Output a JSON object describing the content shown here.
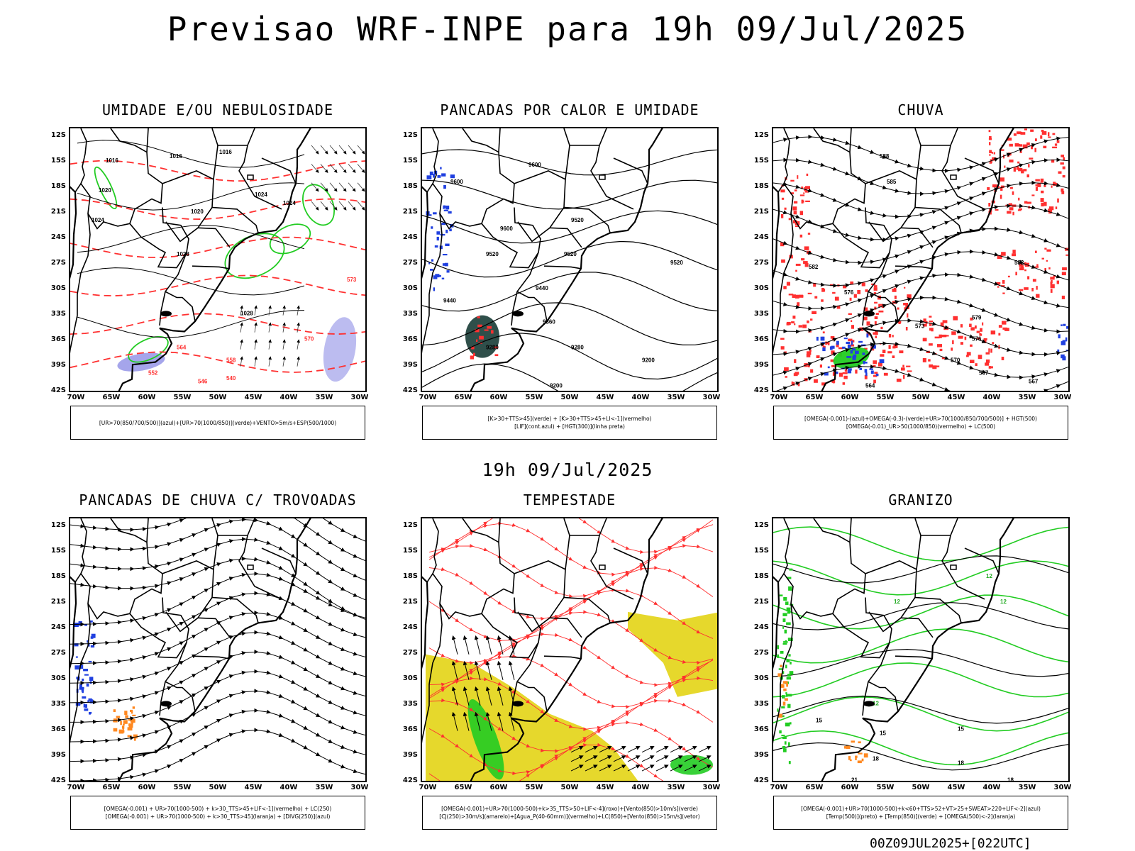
{
  "title": "Previsao WRF-INPE  para 19h 09/Jul/2025",
  "subtitle": "19h 09/Jul/2025",
  "footer": "00Z09JUL2025+[022UTC]",
  "lat_labels": [
    "12S",
    "15S",
    "18S",
    "21S",
    "24S",
    "27S",
    "30S",
    "33S",
    "36S",
    "39S",
    "42S"
  ],
  "lon_labels": [
    "70W",
    "65W",
    "60W",
    "55W",
    "50W",
    "45W",
    "40W",
    "35W",
    "30W"
  ],
  "panels": [
    {
      "title": "UMIDADE E/OU NEBULOSIDADE",
      "legend": [
        "[UR>70(850/700/500)](azul)+[UR>70(1000/850)](verde)+VENTO>5m/s+ESP(500/1000)"
      ],
      "contour_labels": [
        "1016",
        "1016",
        "1016",
        "1020",
        "1020",
        "1024",
        "1024",
        "1024",
        "1028",
        "1028",
        "570",
        "573",
        "564",
        "558",
        "552",
        "546",
        "540"
      ]
    },
    {
      "title": "PANCADAS POR CALOR E UMIDADE",
      "legend": [
        "[K>30+TTS>45](verde) + [K>30+TTS>45+LI<-1](vermelho)",
        "[LIF](cont.azul) + [HGT(300)](linha preta)"
      ],
      "contour_labels": [
        "9600",
        "9600",
        "9600",
        "9520",
        "9520",
        "9520",
        "9520",
        "9440",
        "9440",
        "9360",
        "9280",
        "9280",
        "9200",
        "9200"
      ]
    },
    {
      "title": "CHUVA",
      "legend": [
        "[OMEGA(-0.001)-(azul)+OMEGA(-0.3)-(verde)+UR>70(1000/850/700/500)] + HGT(500)",
        "[OMEGA(-0.01)_UR>50(1000/850)(vermelho) + LC(500)"
      ],
      "contour_labels": [
        "588",
        "585",
        "582",
        "582",
        "579",
        "576",
        "576",
        "573",
        "570",
        "567",
        "567",
        "564"
      ]
    },
    {
      "title": "PANCADAS DE CHUVA C/ TROVOADAS",
      "legend": [
        "[OMEGA(-0.001) + UR>70(1000-500) + k>30_TTS>45+LIF<-1](vermelho) + LC(250)",
        "[OMEGA(-0.001) + UR>70(1000-500) + k>30_TTS>45](laranja) + [DIVG(250)](azul)"
      ],
      "contour_labels": []
    },
    {
      "title": "TEMPESTADE",
      "legend": [
        "[OMEGA(-0.001)+UR>70(1000-500)+k>35_TTS>50+LIF<-4](roxo)+[Vento(850)>10m/s](verde)",
        "[CJ(250)>30m/s](amarelo)+[Agua_P(40-60mm)](vermelho)+LC(850)+[Vento(850)>15m/s](vetor)"
      ],
      "contour_labels": []
    },
    {
      "title": "GRANIZO",
      "legend": [
        "[OMEGA(-0.001)+UR>70(1000-500)+k<60+TTS>52+VT>25+SWEAT>220+LIF<-2](azul)",
        "[Temp(500)](preto) + [Temp(850)](verde) + [OMEGA(500)<-2](laranja)"
      ],
      "contour_labels": [
        "12",
        "12",
        "12",
        "12",
        "15",
        "15",
        "15",
        "18",
        "18",
        "18",
        "21"
      ]
    }
  ],
  "colors": {
    "blue": "#2040e0",
    "green": "#22cc22",
    "red": "#ff3030",
    "orange": "#ff8820",
    "yellow": "#e6d82c",
    "purple": "#9090e0",
    "darkteal": "#2f4f4a"
  }
}
